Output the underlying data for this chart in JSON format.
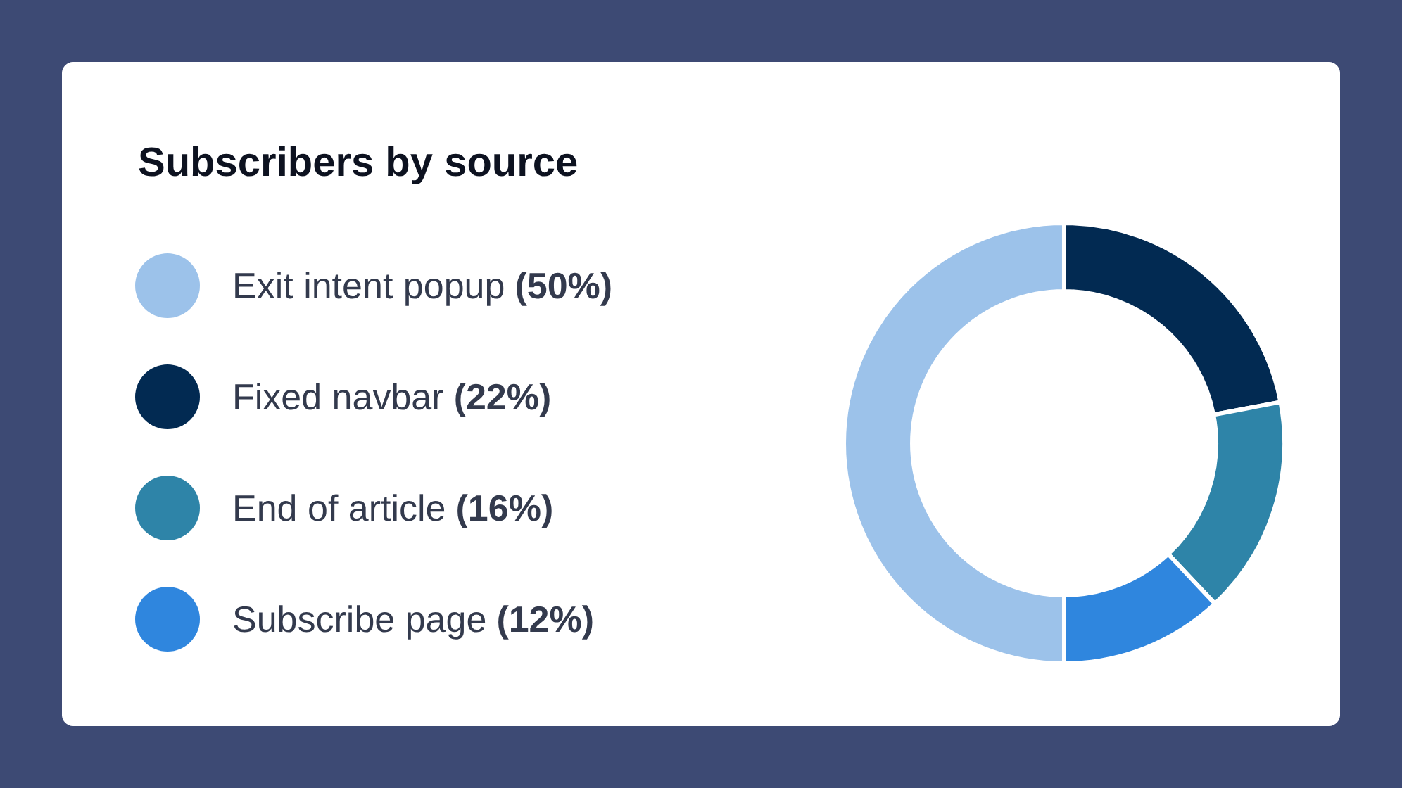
{
  "chart_data": {
    "type": "donut",
    "title": "Subscribers by source",
    "categories": [
      "Exit intent popup",
      "Fixed navbar",
      "End of article",
      "Subscribe page"
    ],
    "values": [
      50,
      22,
      16,
      12
    ],
    "value_labels": [
      "(50%)",
      "(22%)",
      "(16%)",
      "(12%)"
    ],
    "colors": [
      "#9cc2ea",
      "#022a52",
      "#2e84a8",
      "#2f86de"
    ],
    "legend": "left"
  }
}
